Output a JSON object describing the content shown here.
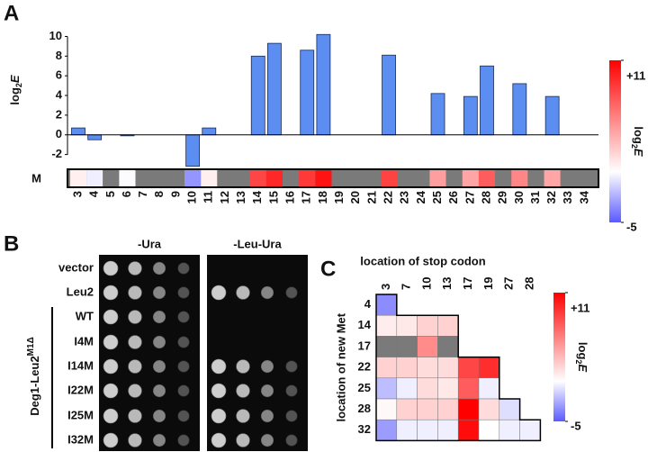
{
  "panel_labels": [
    "A",
    "B",
    "C"
  ],
  "chart_data": [
    {
      "type": "bar",
      "y_label_parts": [
        "log",
        "2",
        "E"
      ],
      "strip_label": "M",
      "categories": [
        "3",
        "4",
        "5",
        "6",
        "7",
        "8",
        "9",
        "10",
        "11",
        "12",
        "13",
        "14",
        "15",
        "16",
        "17",
        "18",
        "19",
        "20",
        "21",
        "22",
        "23",
        "24",
        "25",
        "26",
        "27",
        "28",
        "29",
        "30",
        "31",
        "32",
        "33",
        "34"
      ],
      "values": [
        0.7,
        -0.5,
        null,
        -0.1,
        null,
        null,
        null,
        -3.2,
        0.7,
        null,
        null,
        8.0,
        9.3,
        null,
        8.6,
        10.2,
        null,
        null,
        null,
        8.1,
        null,
        null,
        4.2,
        null,
        3.9,
        7.0,
        null,
        5.2,
        null,
        3.9,
        null,
        null
      ],
      "color": "#5b8ef0",
      "null_color": "#7a7a7a",
      "ylim": [
        -3.5,
        10.5
      ],
      "yticks": [
        -2,
        0,
        2,
        4,
        6,
        8,
        10
      ],
      "colorbar": {
        "lim": [
          -5,
          11
        ],
        "ticks": [
          {
            "value": 11,
            "label": "+11"
          },
          -5
        ],
        "label_parts": [
          "log",
          "2",
          "E"
        ],
        "colors": [
          "#5a5aff",
          "#ffffff",
          "#ff0000"
        ]
      }
    },
    {
      "type": "heatmap",
      "x_label": "location of stop codon",
      "y_label": "location of new Met",
      "x": [
        "3",
        "7",
        "10",
        "13",
        "17",
        "19",
        "27",
        "28"
      ],
      "y": [
        "4",
        "14",
        "17",
        "22",
        "25",
        "28",
        "32"
      ],
      "values": [
        [
          -3.5
        ],
        [
          0.8,
          1,
          2,
          2
        ],
        [
          null,
          null,
          5,
          null
        ],
        [
          2,
          2,
          1.5,
          1.5,
          8,
          9
        ],
        [
          -2,
          -0.5,
          1.5,
          1,
          7,
          -0.5
        ],
        [
          0.3,
          2,
          2,
          2,
          11,
          1.5,
          -1
        ],
        [
          -3,
          -0.5,
          -0.5,
          -0.5,
          10.5,
          0,
          -0.5,
          -0.5
        ]
      ],
      "null_color": "#7a7a7a",
      "colorbar": {
        "lim": [
          -5,
          11
        ],
        "ticks": [
          {
            "value": 11,
            "label": "+11"
          },
          -5
        ],
        "label_parts": [
          "log",
          "2",
          "E"
        ],
        "colors": [
          "#5a5aff",
          "#ffffff",
          "#ff0000"
        ]
      }
    }
  ],
  "panel_b": {
    "plates": [
      "-Ura",
      "-Leu-Ura"
    ],
    "strains": [
      "vector",
      "Leu2",
      "WT",
      "I4M",
      "I14M",
      "I22M",
      "I25M",
      "I32M"
    ],
    "group_label_parts": [
      "Deg1-Leu2",
      "M1Δ"
    ]
  }
}
